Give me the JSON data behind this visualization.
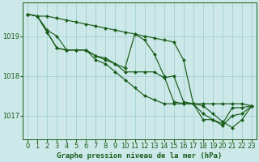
{
  "title": "Graphe pression niveau de la mer (hPa)",
  "background_color": "#cce8e8",
  "grid_color": "#99cccc",
  "line_color": "#1a5c1a",
  "x_hours": [
    0,
    1,
    2,
    3,
    4,
    5,
    6,
    7,
    8,
    9,
    10,
    11,
    12,
    13,
    14,
    15,
    16,
    17,
    18,
    19,
    20,
    21,
    22,
    23
  ],
  "series": [
    [
      1019.55,
      1019.5,
      1019.5,
      1019.45,
      1019.4,
      1019.35,
      1019.3,
      1019.25,
      1019.2,
      1019.15,
      1019.1,
      1019.05,
      1019.0,
      1018.95,
      1018.9,
      1018.85,
      1018.4,
      1017.3,
      1017.3,
      1017.3,
      1017.3,
      1017.3,
      1017.3,
      1017.25
    ],
    [
      1019.55,
      1019.5,
      1019.1,
      1018.7,
      1018.65,
      1018.65,
      1018.65,
      1018.5,
      1018.45,
      1018.3,
      1018.2,
      1019.05,
      1018.9,
      1018.55,
      1018.0,
      1017.35,
      1017.3,
      1017.3,
      1016.9,
      1016.9,
      1016.75,
      1017.0,
      1017.05,
      1017.25
    ],
    [
      1019.55,
      1019.5,
      1019.15,
      1019.0,
      1018.65,
      1018.65,
      1018.65,
      1018.5,
      1018.4,
      1018.3,
      1018.1,
      1018.1,
      1018.1,
      1018.1,
      1017.95,
      1018.0,
      1017.35,
      1017.3,
      1017.05,
      1016.9,
      1016.8,
      1017.2,
      1017.2,
      1017.25
    ],
    [
      1019.55,
      1019.5,
      1019.1,
      1018.7,
      1018.65,
      1018.65,
      1018.65,
      1018.4,
      1018.3,
      1018.1,
      1017.9,
      1017.7,
      1017.5,
      1017.4,
      1017.3,
      1017.3,
      1017.3,
      1017.3,
      1017.25,
      1017.05,
      1016.85,
      1016.7,
      1016.9,
      1017.25
    ]
  ],
  "ylim": [
    1016.4,
    1019.85
  ],
  "yticks": [
    1017.0,
    1018.0,
    1019.0
  ],
  "marker": "D",
  "marker_size": 2.0,
  "line_width": 0.85,
  "tick_fontsize": 6.0,
  "title_fontsize": 6.5
}
